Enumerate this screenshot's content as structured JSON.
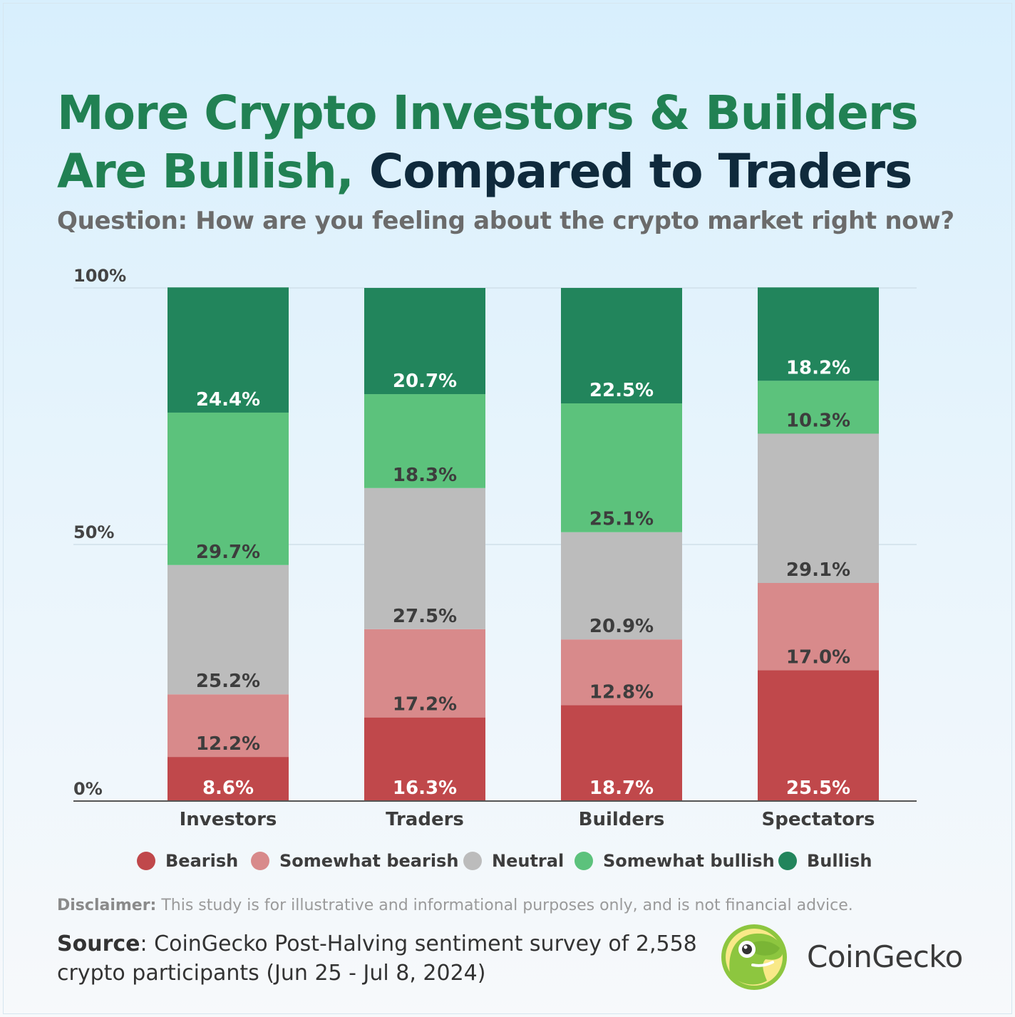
{
  "title": {
    "part1": "More Crypto Investors & Builders",
    "part2": "Are Bullish,",
    "part3": "Compared to Traders"
  },
  "subtitle": "Question: How are you feeling about the crypto market right now?",
  "chart_data": {
    "type": "bar",
    "stacked": true,
    "categories": [
      "Investors",
      "Traders",
      "Builders",
      "Spectators"
    ],
    "ylim": [
      0,
      100
    ],
    "yticks": [
      {
        "value": 0,
        "label": "0%"
      },
      {
        "value": 50,
        "label": "50%"
      },
      {
        "value": 100,
        "label": "100%"
      }
    ],
    "grid": true,
    "legend_position": "bottom",
    "series": [
      {
        "name": "Bearish",
        "color": "#c0484b",
        "label_color": "#ffffff",
        "values": [
          8.6,
          16.3,
          18.7,
          25.5
        ],
        "labels": [
          "8.6%",
          "16.3%",
          "18.7%",
          "25.5%"
        ]
      },
      {
        "name": "Somewhat bearish",
        "color": "#d88a8b",
        "label_color": "#3d3d3d",
        "values": [
          12.2,
          17.2,
          12.8,
          17.0
        ],
        "labels": [
          "12.2%",
          "17.2%",
          "12.8%",
          "17.0%"
        ]
      },
      {
        "name": "Neutral",
        "color": "#bcbcbc",
        "label_color": "#3d3d3d",
        "values": [
          25.2,
          27.5,
          20.9,
          29.1
        ],
        "labels": [
          "25.2%",
          "27.5%",
          "20.9%",
          "29.1%"
        ]
      },
      {
        "name": "Somewhat bullish",
        "color": "#5cc27c",
        "label_color": "#3d3d3d",
        "values": [
          29.7,
          18.3,
          25.1,
          10.3
        ],
        "labels": [
          "29.7%",
          "18.3%",
          "25.1%",
          "10.3%"
        ]
      },
      {
        "name": "Bullish",
        "color": "#22855c",
        "label_color": "#ffffff",
        "values": [
          24.4,
          20.7,
          22.5,
          18.2
        ],
        "labels": [
          "24.4%",
          "20.7%",
          "22.5%",
          "18.2%"
        ]
      }
    ]
  },
  "disclaimer": {
    "label": "Disclaimer:",
    "text": " This study is for illustrative and informational purposes only, and is not financial advice."
  },
  "source": {
    "label": "Source",
    "text": ": CoinGecko Post-Halving sentiment survey of 2,558 crypto participants (Jun 25 - Jul 8, 2024)"
  },
  "brand": {
    "name": "CoinGecko",
    "logo_icon": "gecko-logo-icon"
  },
  "colors": {
    "title_green": "#218153",
    "title_dark": "#0f2a3c"
  }
}
